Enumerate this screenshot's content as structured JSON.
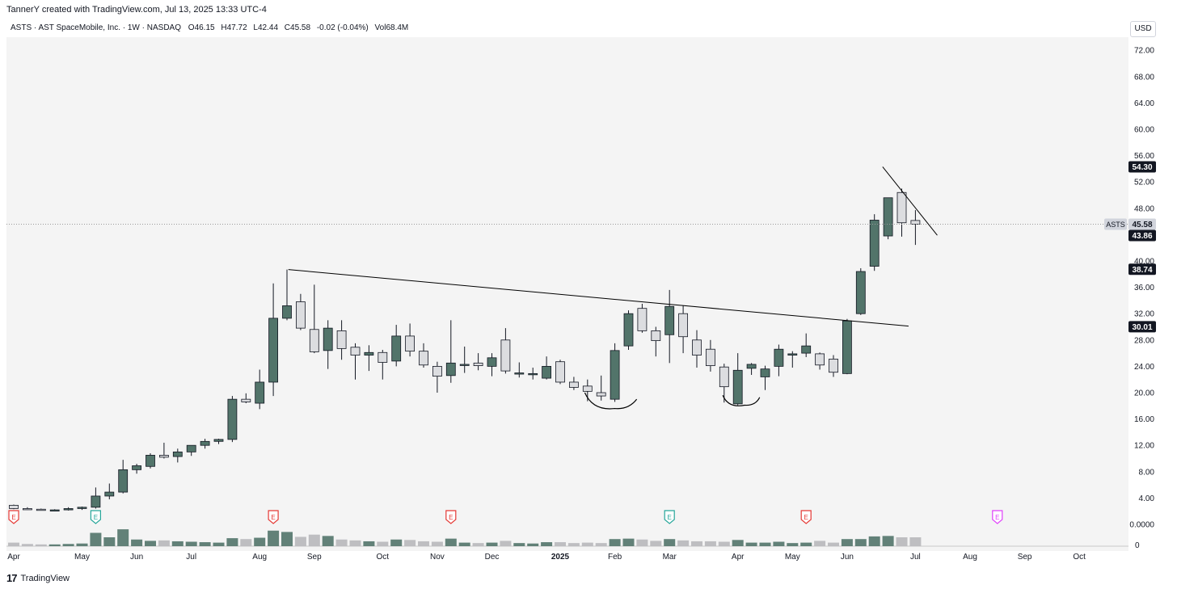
{
  "header": {
    "text": "TannerY created with TradingView.com, Jul 13, 2025 13:33 UTC-4"
  },
  "footer": {
    "logo": "17",
    "brand": "TradingView"
  },
  "currency_button": "USD",
  "colors": {
    "up": "#52746a",
    "down": "#dcdde0",
    "line": "#000000",
    "bg": "#f4f4f4",
    "earnings_red": "#e53935",
    "earnings_green": "#26a69a",
    "earnings_purple": "#e040fb"
  },
  "chart_data": {
    "type": "candlestick",
    "title": "ASTS · AST SpaceMobile, Inc. · 1W · NASDAQ",
    "ohlc_label": {
      "o_label": "O",
      "o": "46.15",
      "h_label": "H",
      "h": "47.72",
      "l_label": "L",
      "l": "42.44",
      "c_label": "C",
      "c": "45.58",
      "change": "-0.02 (-0.04%)",
      "vol_label": "Vol",
      "vol": "68.4M"
    },
    "currency": "USD",
    "ylim": [
      0,
      76
    ],
    "y_ticks": [
      "72.00",
      "68.00",
      "64.00",
      "60.00",
      "56.00",
      "52.00",
      "48.00",
      "44.00",
      "40.00",
      "36.00",
      "32.00",
      "28.00",
      "24.00",
      "20.00",
      "16.00",
      "12.00",
      "8.00",
      "4.00",
      "0.0000"
    ],
    "x_ticks": [
      "Apr",
      "May",
      "Jun",
      "Jul",
      "Aug",
      "Sep",
      "Oct",
      "Nov",
      "Dec",
      "2025",
      "Feb",
      "Mar",
      "Apr",
      "May",
      "Jun",
      "Jul",
      "Aug",
      "Sep",
      "Oct"
    ],
    "price_tags": [
      {
        "label": "54.30",
        "value": 54.3,
        "style": "dark"
      },
      {
        "label": "45.58",
        "value": 45.58,
        "style": "light",
        "ticker": "ASTS"
      },
      {
        "label": "43.86",
        "value": 43.86,
        "style": "dark"
      },
      {
        "label": "38.74",
        "value": 38.74,
        "style": "dark"
      },
      {
        "label": "30.01",
        "value": 30.01,
        "style": "dark"
      }
    ],
    "volume_axis_label": "0",
    "earnings": [
      {
        "label": "E",
        "color": "red",
        "week": 0
      },
      {
        "label": "E",
        "color": "green",
        "week": 6
      },
      {
        "label": "E",
        "color": "red",
        "week": 19
      },
      {
        "label": "E",
        "color": "red",
        "week": 32
      },
      {
        "label": "E",
        "color": "green",
        "week": 48
      },
      {
        "label": "E",
        "color": "red",
        "week": 58
      },
      {
        "label": "E",
        "color": "purple",
        "week": 72
      }
    ],
    "candles": [
      {
        "o": 2.9,
        "h": 3.0,
        "l": 2.3,
        "c": 2.4,
        "v": 0.8
      },
      {
        "o": 2.4,
        "h": 2.6,
        "l": 2.2,
        "c": 2.3,
        "v": 0.5
      },
      {
        "o": 2.3,
        "h": 2.4,
        "l": 2.1,
        "c": 2.2,
        "v": 0.4
      },
      {
        "o": 2.2,
        "h": 2.3,
        "l": 2.0,
        "c": 2.2,
        "v": 0.4
      },
      {
        "o": 2.2,
        "h": 2.6,
        "l": 2.1,
        "c": 2.4,
        "v": 0.5
      },
      {
        "o": 2.4,
        "h": 2.7,
        "l": 2.2,
        "c": 2.6,
        "v": 0.6
      },
      {
        "o": 2.6,
        "h": 5.6,
        "l": 2.4,
        "c": 4.3,
        "v": 3.0
      },
      {
        "o": 4.3,
        "h": 6.2,
        "l": 3.8,
        "c": 4.9,
        "v": 2.0
      },
      {
        "o": 4.9,
        "h": 9.8,
        "l": 4.7,
        "c": 8.3,
        "v": 3.8
      },
      {
        "o": 8.3,
        "h": 9.2,
        "l": 7.7,
        "c": 8.9,
        "v": 1.5
      },
      {
        "o": 8.8,
        "h": 10.8,
        "l": 8.5,
        "c": 10.5,
        "v": 1.2
      },
      {
        "o": 10.5,
        "h": 12.4,
        "l": 10.0,
        "c": 10.2,
        "v": 1.3
      },
      {
        "o": 10.3,
        "h": 11.5,
        "l": 9.4,
        "c": 11.0,
        "v": 1.1
      },
      {
        "o": 11.0,
        "h": 12.0,
        "l": 10.4,
        "c": 12.0,
        "v": 1.0
      },
      {
        "o": 12.0,
        "h": 13.0,
        "l": 11.5,
        "c": 12.6,
        "v": 0.9
      },
      {
        "o": 12.6,
        "h": 13.0,
        "l": 12.2,
        "c": 12.9,
        "v": 0.8
      },
      {
        "o": 12.9,
        "h": 19.5,
        "l": 12.5,
        "c": 19.0,
        "v": 1.8
      },
      {
        "o": 19.0,
        "h": 19.9,
        "l": 18.4,
        "c": 18.6,
        "v": 1.6
      },
      {
        "o": 18.4,
        "h": 23.5,
        "l": 17.5,
        "c": 21.6,
        "v": 1.9
      },
      {
        "o": 21.6,
        "h": 36.6,
        "l": 19.5,
        "c": 31.3,
        "v": 3.5
      },
      {
        "o": 31.3,
        "h": 38.7,
        "l": 31.0,
        "c": 33.2,
        "v": 3.2
      },
      {
        "o": 33.8,
        "h": 35.0,
        "l": 29.5,
        "c": 29.8,
        "v": 2.1
      },
      {
        "o": 29.6,
        "h": 36.4,
        "l": 26.0,
        "c": 26.2,
        "v": 2.6
      },
      {
        "o": 26.4,
        "h": 31.0,
        "l": 23.6,
        "c": 29.8,
        "v": 2.3
      },
      {
        "o": 29.4,
        "h": 31.0,
        "l": 25.0,
        "c": 26.7,
        "v": 1.5
      },
      {
        "o": 26.9,
        "h": 27.5,
        "l": 22.0,
        "c": 25.7,
        "v": 1.3
      },
      {
        "o": 25.7,
        "h": 27.2,
        "l": 23.3,
        "c": 26.1,
        "v": 1.1
      },
      {
        "o": 26.1,
        "h": 26.5,
        "l": 22.0,
        "c": 24.6,
        "v": 1.0
      },
      {
        "o": 24.8,
        "h": 30.3,
        "l": 24.0,
        "c": 28.6,
        "v": 1.5
      },
      {
        "o": 28.6,
        "h": 30.5,
        "l": 25.5,
        "c": 26.3,
        "v": 1.4
      },
      {
        "o": 26.3,
        "h": 27.5,
        "l": 23.8,
        "c": 24.2,
        "v": 1.1
      },
      {
        "o": 24.0,
        "h": 24.7,
        "l": 20.0,
        "c": 22.5,
        "v": 1.0
      },
      {
        "o": 22.6,
        "h": 31.0,
        "l": 21.5,
        "c": 24.5,
        "v": 1.7
      },
      {
        "o": 24.3,
        "h": 27.0,
        "l": 23.0,
        "c": 24.3,
        "v": 0.8
      },
      {
        "o": 24.5,
        "h": 26.0,
        "l": 23.4,
        "c": 24.1,
        "v": 0.7
      },
      {
        "o": 24.0,
        "h": 26.0,
        "l": 22.5,
        "c": 25.3,
        "v": 0.8
      },
      {
        "o": 28.0,
        "h": 29.8,
        "l": 22.9,
        "c": 23.3,
        "v": 1.2
      },
      {
        "o": 23.0,
        "h": 24.6,
        "l": 22.3,
        "c": 23.0,
        "v": 0.7
      },
      {
        "o": 22.9,
        "h": 23.8,
        "l": 22.0,
        "c": 22.9,
        "v": 0.6
      },
      {
        "o": 22.2,
        "h": 25.5,
        "l": 22.0,
        "c": 24.0,
        "v": 0.9
      },
      {
        "o": 24.7,
        "h": 25.0,
        "l": 21.3,
        "c": 21.6,
        "v": 0.9
      },
      {
        "o": 21.6,
        "h": 22.4,
        "l": 20.4,
        "c": 20.8,
        "v": 0.7
      },
      {
        "o": 21.0,
        "h": 22.0,
        "l": 18.7,
        "c": 20.2,
        "v": 0.8
      },
      {
        "o": 20.0,
        "h": 22.6,
        "l": 18.8,
        "c": 19.5,
        "v": 0.7
      },
      {
        "o": 19.0,
        "h": 27.5,
        "l": 18.6,
        "c": 26.4,
        "v": 1.6
      },
      {
        "o": 27.1,
        "h": 32.5,
        "l": 26.5,
        "c": 32.0,
        "v": 1.7
      },
      {
        "o": 32.8,
        "h": 33.5,
        "l": 29.1,
        "c": 29.4,
        "v": 1.5
      },
      {
        "o": 29.4,
        "h": 30.0,
        "l": 25.5,
        "c": 27.9,
        "v": 1.2
      },
      {
        "o": 28.8,
        "h": 35.6,
        "l": 24.5,
        "c": 33.1,
        "v": 1.6
      },
      {
        "o": 32.0,
        "h": 33.2,
        "l": 26.0,
        "c": 28.5,
        "v": 1.3
      },
      {
        "o": 28.0,
        "h": 29.5,
        "l": 23.8,
        "c": 25.7,
        "v": 1.1
      },
      {
        "o": 26.6,
        "h": 28.0,
        "l": 23.2,
        "c": 24.1,
        "v": 1.1
      },
      {
        "o": 23.9,
        "h": 24.4,
        "l": 18.5,
        "c": 20.9,
        "v": 1.0
      },
      {
        "o": 18.3,
        "h": 26.0,
        "l": 18.1,
        "c": 23.4,
        "v": 1.4
      },
      {
        "o": 23.7,
        "h": 24.5,
        "l": 22.7,
        "c": 24.3,
        "v": 0.8
      },
      {
        "o": 22.4,
        "h": 24.1,
        "l": 20.4,
        "c": 23.6,
        "v": 0.8
      },
      {
        "o": 24.0,
        "h": 27.3,
        "l": 22.5,
        "c": 26.6,
        "v": 1.0
      },
      {
        "o": 25.7,
        "h": 26.3,
        "l": 23.8,
        "c": 25.9,
        "v": 0.7
      },
      {
        "o": 26.0,
        "h": 29.0,
        "l": 25.4,
        "c": 27.1,
        "v": 0.8
      },
      {
        "o": 25.9,
        "h": 26.1,
        "l": 23.5,
        "c": 24.2,
        "v": 1.2
      },
      {
        "o": 25.1,
        "h": 25.7,
        "l": 22.4,
        "c": 23.1,
        "v": 0.8
      },
      {
        "o": 22.9,
        "h": 31.2,
        "l": 22.8,
        "c": 30.9,
        "v": 1.6
      },
      {
        "o": 32.0,
        "h": 38.9,
        "l": 31.8,
        "c": 38.4,
        "v": 1.6
      },
      {
        "o": 39.2,
        "h": 47.1,
        "l": 38.5,
        "c": 46.2,
        "v": 2.2
      },
      {
        "o": 43.8,
        "h": 49.3,
        "l": 43.3,
        "c": 49.6,
        "v": 2.3
      },
      {
        "o": 50.4,
        "h": 51.0,
        "l": 43.7,
        "c": 45.8,
        "v": 2.0
      },
      {
        "o": 46.15,
        "h": 47.72,
        "l": 42.44,
        "c": 45.58,
        "v": 2.0
      }
    ]
  }
}
